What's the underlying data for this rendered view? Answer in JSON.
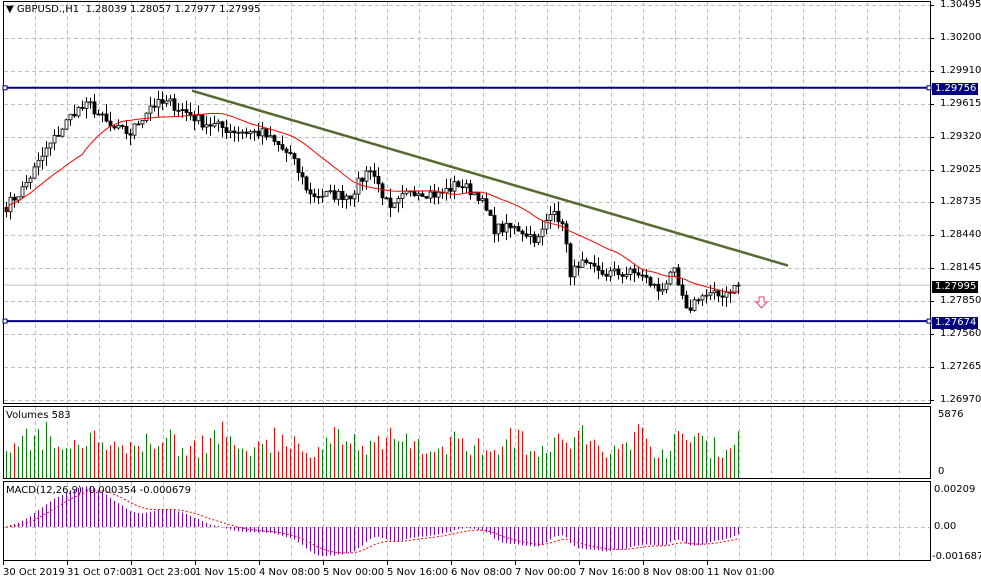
{
  "header": {
    "symbol": "GBPUSD.,H1",
    "ohlc": "1.28039 1.28057 1.27977 1.27995"
  },
  "volume_panel": {
    "title": "Volumes 583",
    "max_label": "5876",
    "min_label": "0"
  },
  "macd_panel": {
    "title": "MACD(12,26,9) -0.000354 -0.000679",
    "top_label": "0.00209",
    "zero_label": "0.00",
    "bottom_label": "-0.001687"
  },
  "price_axis": [
    "1.30495",
    "1.30200",
    "1.29910",
    "1.29615",
    "1.29320",
    "1.29025",
    "1.28735",
    "1.28440",
    "1.28145",
    "1.27850",
    "1.27560",
    "1.27265",
    "1.26970"
  ],
  "levels": {
    "resistance": "1.29756",
    "support": "1.27674",
    "current": "1.27995"
  },
  "time_axis": [
    "30 Oct 2019",
    "31 Oct 07:00",
    "31 Oct 23:00",
    "1 Nov 15:00",
    "4 Nov 08:00",
    "5 Nov 00:00",
    "5 Nov 16:00",
    "6 Nov 08:00",
    "7 Nov 00:00",
    "7 Nov 16:00",
    "8 Nov 08:00",
    "11 Nov 01:00"
  ],
  "colors": {
    "level": "#000080",
    "trend": "#556b2f",
    "ma": "#ff0000",
    "up_vol": "#008000",
    "down_vol": "#ff0000",
    "macd": "#8000c0",
    "current": "#000000"
  },
  "chart_data": {
    "type": "candlestick",
    "symbol": "GBPUSD",
    "timeframe": "H1",
    "ylim": [
      1.2697,
      1.30495
    ],
    "close_keypoints_by_bar": [
      [
        0,
        1.287
      ],
      [
        4,
        1.2885
      ],
      [
        10,
        1.292
      ],
      [
        17,
        1.2955
      ],
      [
        21,
        1.296
      ],
      [
        26,
        1.294
      ],
      [
        31,
        1.2935
      ],
      [
        36,
        1.296
      ],
      [
        41,
        1.2962
      ],
      [
        49,
        1.2945
      ],
      [
        56,
        1.2938
      ],
      [
        64,
        1.2935
      ],
      [
        71,
        1.2915
      ],
      [
        76,
        1.288
      ],
      [
        86,
        1.288
      ],
      [
        91,
        1.2905
      ],
      [
        96,
        1.2865
      ],
      [
        101,
        1.2885
      ],
      [
        108,
        1.288
      ],
      [
        113,
        1.289
      ],
      [
        118,
        1.288
      ],
      [
        122,
        1.285
      ],
      [
        128,
        1.285
      ],
      [
        133,
        1.284
      ],
      [
        137,
        1.287
      ],
      [
        140,
        1.284
      ],
      [
        141,
        1.2805
      ],
      [
        143,
        1.282
      ],
      [
        148,
        1.281
      ],
      [
        158,
        1.281
      ],
      [
        163,
        1.2795
      ],
      [
        167,
        1.281
      ],
      [
        170,
        1.2775
      ],
      [
        173,
        1.279
      ],
      [
        178,
        1.279
      ],
      [
        183,
        1.27995
      ]
    ],
    "trendline": {
      "from_bar": 47,
      "from_price": 1.2973,
      "to_bar": 195,
      "to_price": 1.2817
    },
    "horizontal_levels": [
      1.29756,
      1.27674
    ],
    "ma_period": 20,
    "volume_max": 5876,
    "macd": {
      "fast": 12,
      "slow": 26,
      "signal": 9,
      "ylim": [
        -0.001687,
        0.00209
      ]
    }
  }
}
